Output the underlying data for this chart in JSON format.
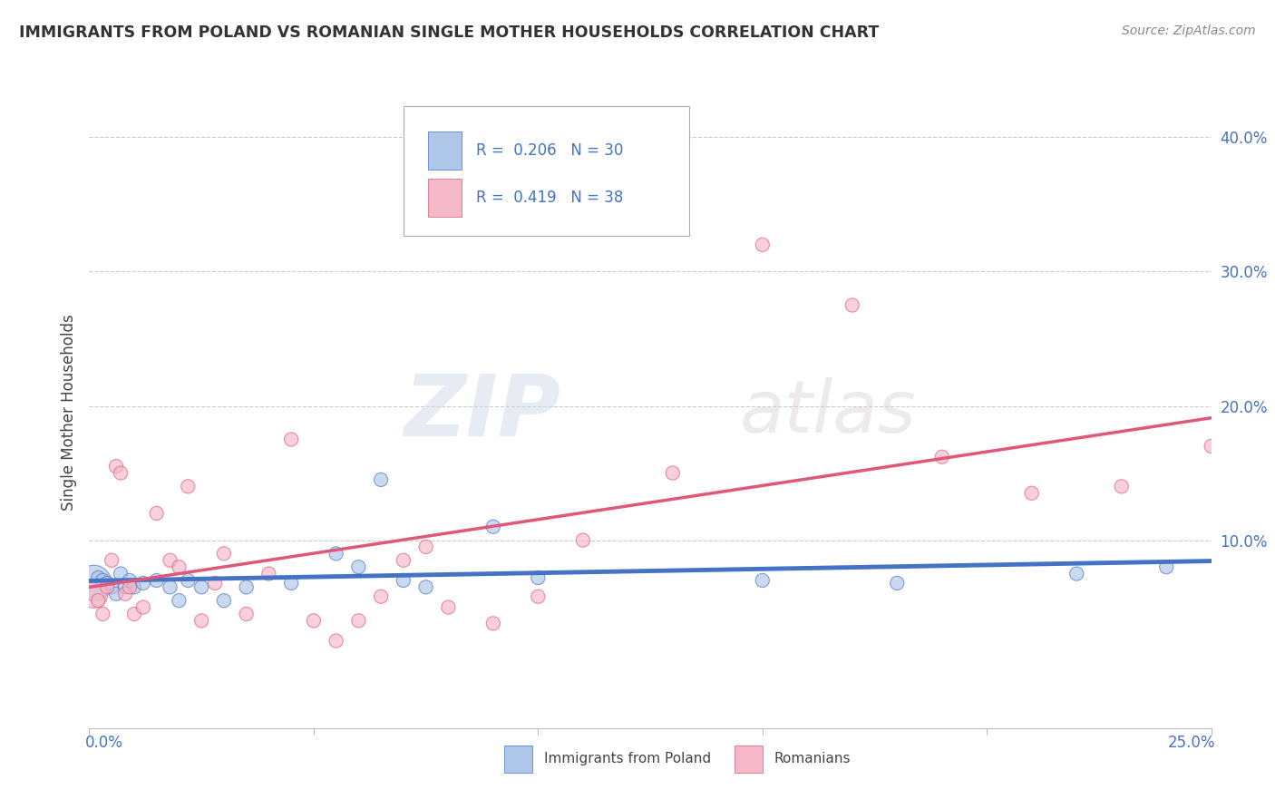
{
  "title": "IMMIGRANTS FROM POLAND VS ROMANIAN SINGLE MOTHER HOUSEHOLDS CORRELATION CHART",
  "source": "Source: ZipAtlas.com",
  "ylabel": "Single Mother Households",
  "xlim": [
    0.0,
    0.25
  ],
  "ylim": [
    -0.04,
    0.43
  ],
  "legend_r1": "0.206",
  "legend_n1": "30",
  "legend_r2": "0.419",
  "legend_n2": "38",
  "color_poland": "#aec6e8",
  "color_romania": "#f4b8c8",
  "color_poland_line": "#4472c4",
  "color_romania_line": "#e05878",
  "watermark_zip": "ZIP",
  "watermark_atlas": "atlas",
  "poland_x": [
    0.001,
    0.002,
    0.003,
    0.004,
    0.005,
    0.006,
    0.007,
    0.008,
    0.009,
    0.01,
    0.012,
    0.015,
    0.018,
    0.02,
    0.022,
    0.025,
    0.03,
    0.035,
    0.045,
    0.055,
    0.06,
    0.065,
    0.07,
    0.075,
    0.09,
    0.1,
    0.15,
    0.18,
    0.22,
    0.24
  ],
  "poland_y": [
    0.068,
    0.072,
    0.07,
    0.068,
    0.065,
    0.06,
    0.075,
    0.065,
    0.07,
    0.065,
    0.068,
    0.07,
    0.065,
    0.055,
    0.07,
    0.065,
    0.055,
    0.065,
    0.068,
    0.09,
    0.08,
    0.145,
    0.07,
    0.065,
    0.11,
    0.072,
    0.07,
    0.068,
    0.075,
    0.08
  ],
  "poland_sizes": [
    800,
    120,
    120,
    120,
    120,
    120,
    120,
    120,
    120,
    120,
    120,
    120,
    120,
    120,
    120,
    120,
    120,
    120,
    120,
    120,
    120,
    120,
    120,
    120,
    120,
    120,
    120,
    120,
    120,
    120
  ],
  "romania_x": [
    0.001,
    0.002,
    0.003,
    0.004,
    0.005,
    0.006,
    0.007,
    0.008,
    0.009,
    0.01,
    0.012,
    0.015,
    0.018,
    0.02,
    0.022,
    0.025,
    0.028,
    0.03,
    0.035,
    0.04,
    0.045,
    0.05,
    0.055,
    0.06,
    0.065,
    0.07,
    0.075,
    0.08,
    0.09,
    0.1,
    0.11,
    0.13,
    0.15,
    0.17,
    0.19,
    0.21,
    0.23,
    0.25
  ],
  "romania_y": [
    0.06,
    0.055,
    0.045,
    0.065,
    0.085,
    0.155,
    0.15,
    0.06,
    0.065,
    0.045,
    0.05,
    0.12,
    0.085,
    0.08,
    0.14,
    0.04,
    0.068,
    0.09,
    0.045,
    0.075,
    0.175,
    0.04,
    0.025,
    0.04,
    0.058,
    0.085,
    0.095,
    0.05,
    0.038,
    0.058,
    0.1,
    0.15,
    0.32,
    0.275,
    0.162,
    0.135,
    0.14,
    0.17
  ],
  "romania_sizes": [
    500,
    120,
    120,
    120,
    120,
    120,
    120,
    120,
    120,
    120,
    120,
    120,
    120,
    120,
    120,
    120,
    120,
    120,
    120,
    120,
    120,
    120,
    120,
    120,
    120,
    120,
    120,
    120,
    120,
    120,
    120,
    120,
    120,
    120,
    120,
    120,
    120,
    120
  ]
}
